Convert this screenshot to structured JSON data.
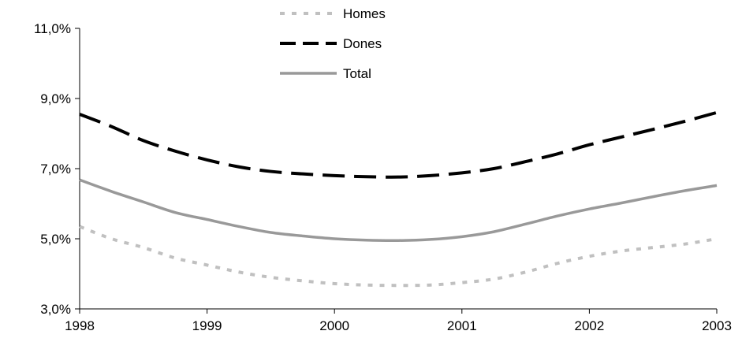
{
  "chart_data": {
    "type": "line",
    "title": "",
    "xlabel": "",
    "ylabel": "",
    "x": [
      1998,
      1998.25,
      1998.5,
      1998.75,
      1999,
      1999.25,
      1999.5,
      1999.75,
      2000,
      2000.25,
      2000.5,
      2000.75,
      2001,
      2001.25,
      2001.5,
      2001.75,
      2002,
      2002.25,
      2002.5,
      2002.75,
      2003
    ],
    "xlim": [
      1998,
      2003
    ],
    "ylim": [
      3.0,
      11.0
    ],
    "x_ticks": [
      "1998",
      "1999",
      "2000",
      "2001",
      "2002",
      "2003"
    ],
    "y_ticks": [
      "3,0%",
      "5,0%",
      "7,0%",
      "9,0%",
      "11,0%"
    ],
    "y_tick_values": [
      3.0,
      5.0,
      7.0,
      9.0,
      11.0
    ],
    "x_tick_values": [
      1998,
      1999,
      2000,
      2001,
      2002,
      2003
    ],
    "legend_position": "top-center",
    "series": [
      {
        "name": "Homes",
        "color": "#c0c0c0",
        "dash": "dotted",
        "values": [
          5.35,
          5.0,
          4.75,
          4.45,
          4.25,
          4.05,
          3.9,
          3.8,
          3.72,
          3.68,
          3.67,
          3.68,
          3.75,
          3.85,
          4.05,
          4.3,
          4.5,
          4.65,
          4.75,
          4.85,
          5.0
        ]
      },
      {
        "name": "Dones",
        "color": "#000000",
        "dash": "dashed",
        "values": [
          8.55,
          8.2,
          7.8,
          7.5,
          7.25,
          7.05,
          6.92,
          6.85,
          6.8,
          6.77,
          6.76,
          6.8,
          6.88,
          7.0,
          7.2,
          7.42,
          7.68,
          7.9,
          8.12,
          8.35,
          8.6
        ]
      },
      {
        "name": "Total",
        "color": "#999999",
        "dash": "solid",
        "values": [
          6.68,
          6.35,
          6.05,
          5.75,
          5.55,
          5.35,
          5.18,
          5.08,
          5.0,
          4.96,
          4.95,
          4.98,
          5.06,
          5.2,
          5.42,
          5.65,
          5.85,
          6.02,
          6.2,
          6.37,
          6.52
        ]
      }
    ]
  }
}
